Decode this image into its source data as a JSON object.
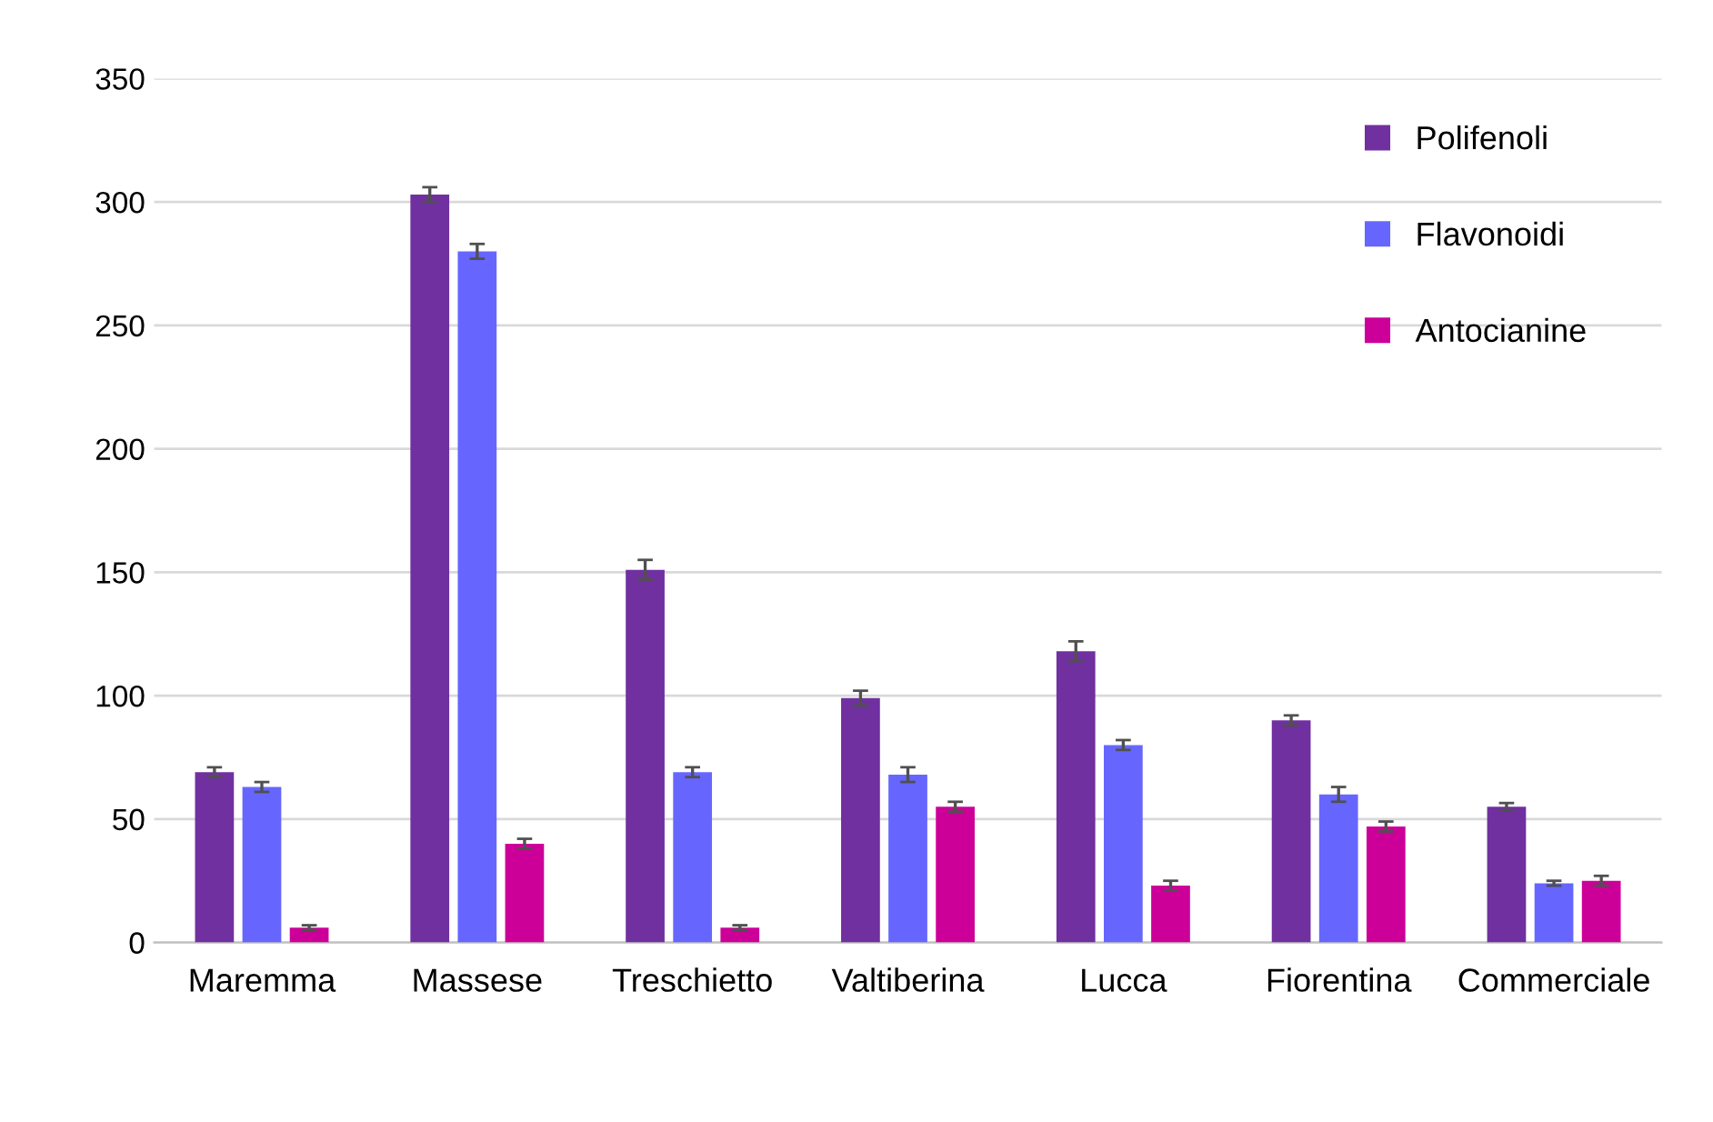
{
  "chart_data": {
    "type": "bar",
    "categories": [
      "Maremma",
      "Massese",
      "Treschietto",
      "Valtiberina",
      "Lucca",
      "Fiorentina",
      "Commerciale"
    ],
    "series": [
      {
        "name": "Polifenoli",
        "color": "#7030a0",
        "values": [
          69,
          303,
          151,
          99,
          118,
          90,
          55
        ],
        "errors": [
          2,
          3,
          4,
          3,
          4,
          2,
          1.5
        ]
      },
      {
        "name": "Flavonoidi",
        "color": "#6666ff",
        "values": [
          63,
          280,
          69,
          68,
          80,
          60,
          24
        ],
        "errors": [
          2,
          3,
          2,
          3,
          2,
          3,
          1
        ]
      },
      {
        "name": "Antocianine",
        "color": "#cc0099",
        "values": [
          6,
          40,
          6,
          55,
          23,
          47,
          25
        ],
        "errors": [
          1,
          2,
          1,
          2,
          2,
          2,
          2
        ]
      }
    ],
    "ylim": [
      0,
      350
    ],
    "yticks": [
      0,
      50,
      100,
      150,
      200,
      250,
      300,
      350
    ],
    "grid": "y",
    "legend": "top right"
  }
}
